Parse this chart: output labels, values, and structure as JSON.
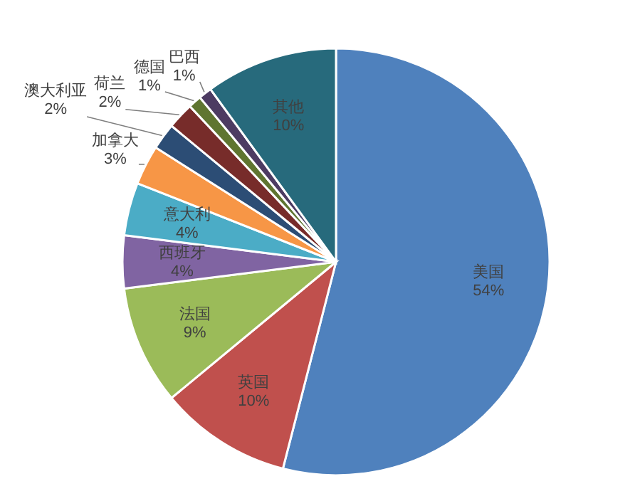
{
  "chart_data": {
    "type": "pie",
    "categories": [
      "美国",
      "英国",
      "法国",
      "西班牙",
      "意大利",
      "加拿大",
      "澳大利亚",
      "荷兰",
      "德国",
      "巴西",
      "其他"
    ],
    "values": [
      54,
      10,
      9,
      4,
      4,
      3,
      2,
      2,
      1,
      1,
      10
    ],
    "colors": [
      "#4f81bd",
      "#c0504d",
      "#9bbb59",
      "#8064a2",
      "#4bacc6",
      "#f79646",
      "#2c4d75",
      "#772c2a",
      "#5f7530",
      "#4d3b62",
      "#276a7c"
    ],
    "value_labels": [
      "54%",
      "10%",
      "9%",
      "4%",
      "4%",
      "3%",
      "2%",
      "2%",
      "1%",
      "1%",
      "10%"
    ]
  }
}
